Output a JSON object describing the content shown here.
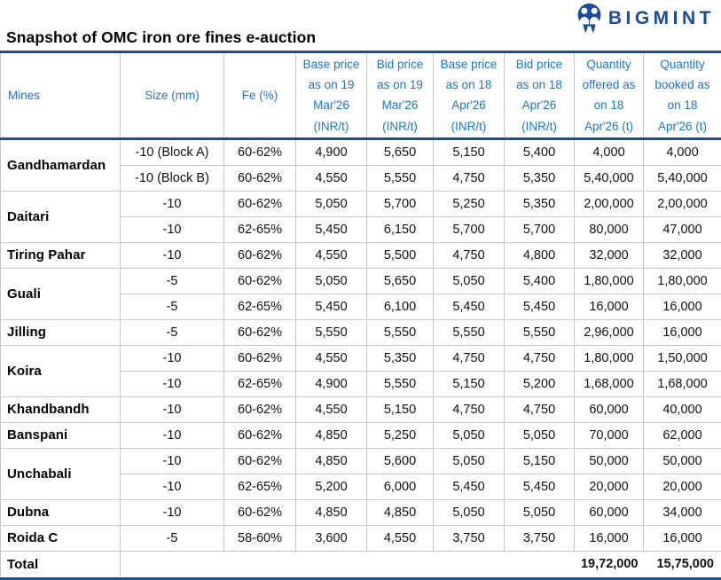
{
  "title": "Snapshot of OMC iron ore fines e-auction",
  "brand": {
    "name": "BIGMINT",
    "icon": "bigmint-owl-icon",
    "color": "#1b4a9e"
  },
  "colors": {
    "header_text": "#1b76cf",
    "accent_border": "#15519a",
    "grid_line": "#c8c8c8",
    "body_text": "#111111"
  },
  "chart_data": {
    "type": "table",
    "title": "Snapshot of OMC iron ore fines e-auction",
    "columns": [
      [
        "Mines"
      ],
      [
        "Size (mm)"
      ],
      [
        "Fe (%)"
      ],
      [
        "Base price",
        "as on 19",
        "Mar'26",
        "(INR/t)"
      ],
      [
        "Bid price",
        "as on 19",
        "Mar'26",
        "(INR/t)"
      ],
      [
        "Base price",
        "as on 18",
        "Apr'26",
        "(INR/t)"
      ],
      [
        "Bid price",
        "as on 18",
        "Apr'26",
        "(INR/t)"
      ],
      [
        "Quantity",
        "offered as",
        "on 18",
        "Apr'26 (t)"
      ],
      [
        "Quantity",
        "booked as",
        "on 18",
        "Apr'26 (t)"
      ]
    ],
    "groups": [
      {
        "mine": "Gandhamardan",
        "rows": [
          [
            "-10 (Block A)",
            "60-62%",
            "4,900",
            "5,650",
            "5,150",
            "5,400",
            "4,000",
            "4,000"
          ],
          [
            "-10 (Block B)",
            "60-62%",
            "4,550",
            "5,550",
            "4,750",
            "5,350",
            "5,40,000",
            "5,40,000"
          ]
        ]
      },
      {
        "mine": "Daitari",
        "rows": [
          [
            "-10",
            "60-62%",
            "5,050",
            "5,700",
            "5,250",
            "5,350",
            "2,00,000",
            "2,00,000"
          ],
          [
            "-10",
            "62-65%",
            "5,450",
            "6,150",
            "5,700",
            "5,700",
            "80,000",
            "47,000"
          ]
        ]
      },
      {
        "mine": "Tiring Pahar",
        "rows": [
          [
            "-10",
            "60-62%",
            "4,550",
            "5,500",
            "4,750",
            "4,800",
            "32,000",
            "32,000"
          ]
        ]
      },
      {
        "mine": "Guali",
        "rows": [
          [
            "-5",
            "60-62%",
            "5,050",
            "5,650",
            "5,050",
            "5,400",
            "1,80,000",
            "1,80,000"
          ],
          [
            "-5",
            "62-65%",
            "5,450",
            "6,100",
            "5,450",
            "5,450",
            "16,000",
            "16,000"
          ]
        ]
      },
      {
        "mine": "Jilling",
        "rows": [
          [
            "-5",
            "60-62%",
            "5,550",
            "5,550",
            "5,550",
            "5,550",
            "2,96,000",
            "16,000"
          ]
        ]
      },
      {
        "mine": "Koira",
        "rows": [
          [
            "-10",
            "60-62%",
            "4,550",
            "5,350",
            "4,750",
            "4,750",
            "1,80,000",
            "1,50,000"
          ],
          [
            "-10",
            "62-65%",
            "4,900",
            "5,550",
            "5,150",
            "5,200",
            "1,68,000",
            "1,68,000"
          ]
        ]
      },
      {
        "mine": "Khandbandh",
        "rows": [
          [
            "-10",
            "60-62%",
            "4,550",
            "5,150",
            "4,750",
            "4,750",
            "60,000",
            "40,000"
          ]
        ]
      },
      {
        "mine": "Banspani",
        "rows": [
          [
            "-10",
            "60-62%",
            "4,850",
            "5,250",
            "5,050",
            "5,050",
            "70,000",
            "62,000"
          ]
        ]
      },
      {
        "mine": "Unchabali",
        "rows": [
          [
            "-10",
            "60-62%",
            "4,850",
            "5,600",
            "5,050",
            "5,150",
            "50,000",
            "50,000"
          ],
          [
            "-10",
            "62-65%",
            "5,200",
            "6,000",
            "5,450",
            "5,450",
            "20,000",
            "20,000"
          ]
        ]
      },
      {
        "mine": "Dubna",
        "rows": [
          [
            "-10",
            "60-62%",
            "4,850",
            "4,850",
            "5,050",
            "5,050",
            "60,000",
            "34,000"
          ]
        ]
      },
      {
        "mine": "Roida C",
        "rows": [
          [
            "-5",
            "58-60%",
            "3,600",
            "4,550",
            "3,750",
            "3,750",
            "16,000",
            "16,000"
          ]
        ]
      }
    ],
    "total": {
      "label": "Total",
      "quantity_offered": "19,72,000",
      "quantity_booked": "15,75,000"
    }
  }
}
